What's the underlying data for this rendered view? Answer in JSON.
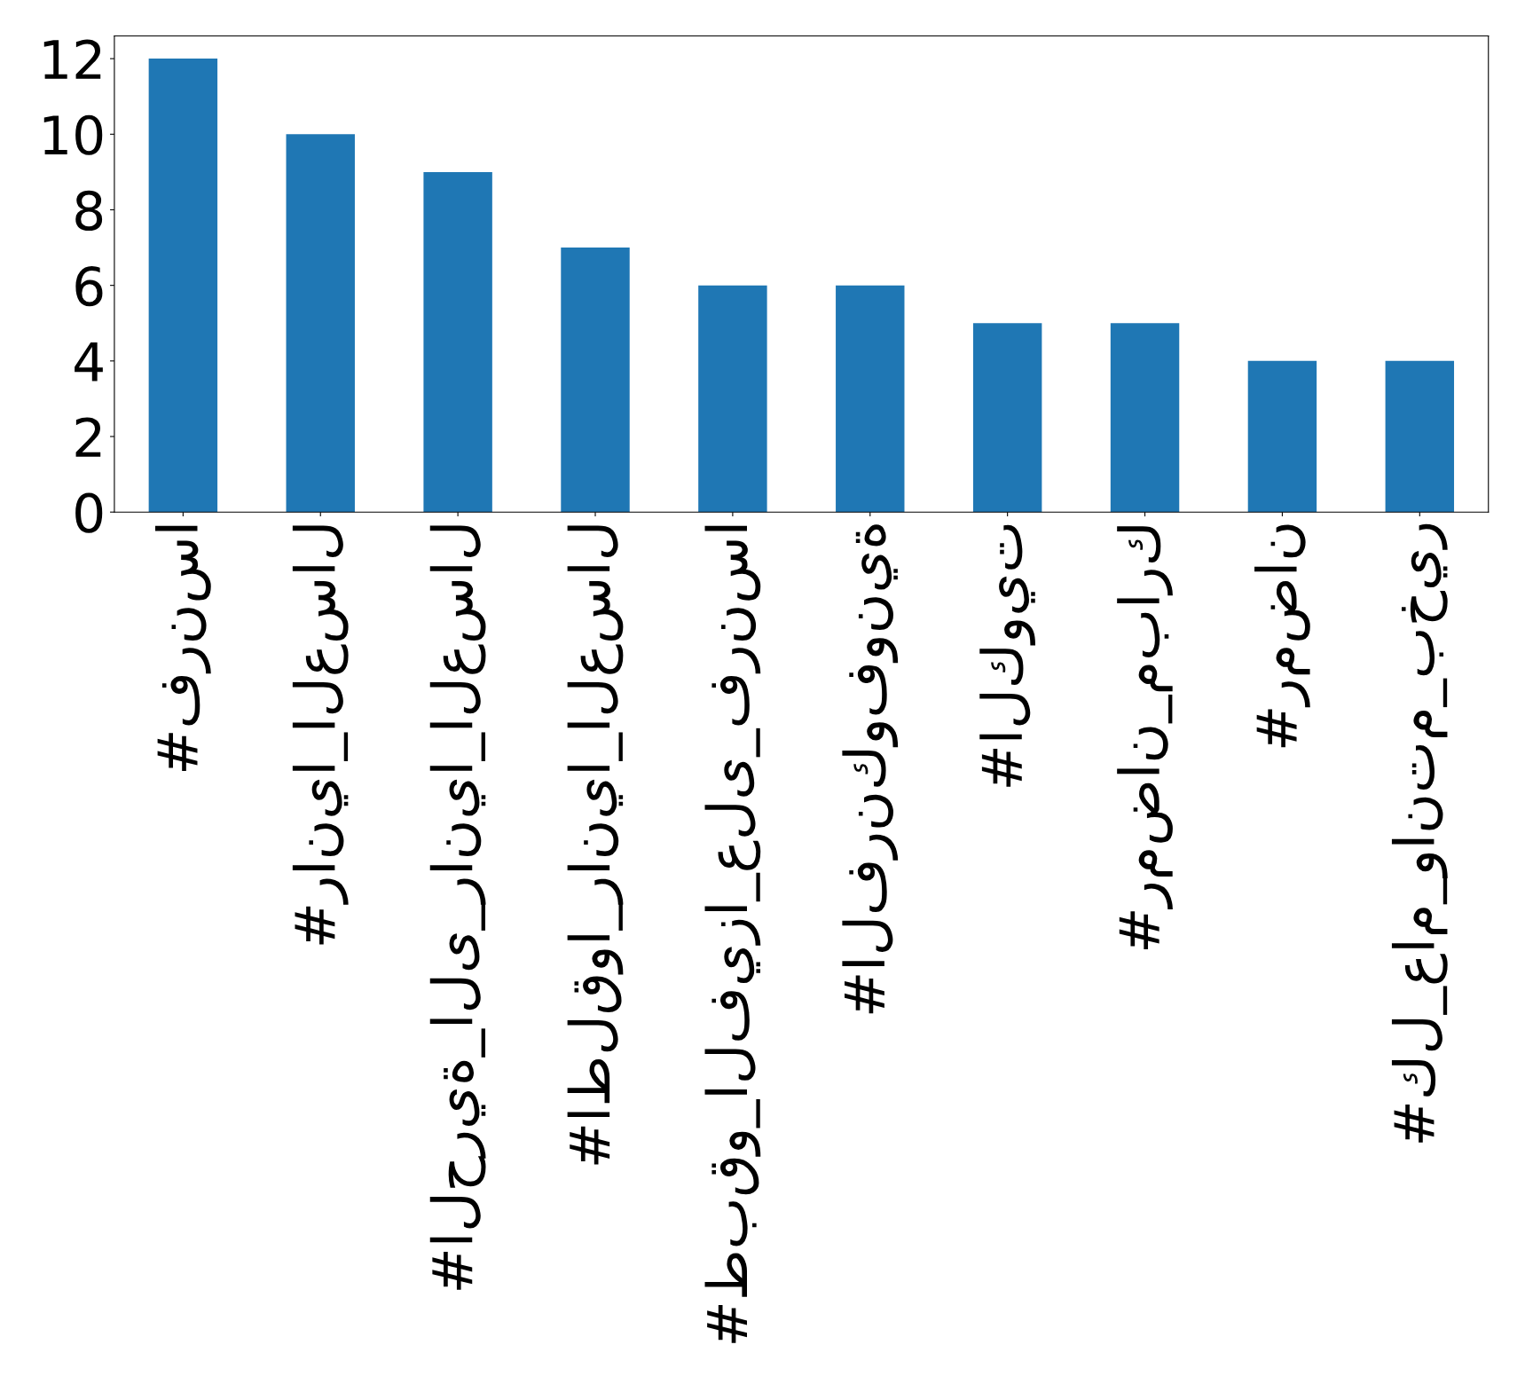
{
  "chart_data": {
    "type": "bar",
    "categories": [
      "#فرنسا",
      "#رانيا_العسال",
      "#الحرية_الى_رانيا_العسال",
      "#اطلقوا_رانيا_العسال",
      "#طبقو_الفيزا_على_فرنسا",
      "#الفرنكوفونية",
      "#الكويت",
      "#رمضان_مبارك",
      "#رمضان",
      "#كل_عام_وانتم_بخير"
    ],
    "values": [
      12,
      10,
      9,
      7,
      6,
      6,
      5,
      5,
      4,
      4
    ],
    "color": "#1f77b4",
    "ylim": [
      0,
      12.6
    ],
    "yticks": [
      0,
      2,
      4,
      6,
      8,
      10,
      12
    ],
    "grid": false
  }
}
